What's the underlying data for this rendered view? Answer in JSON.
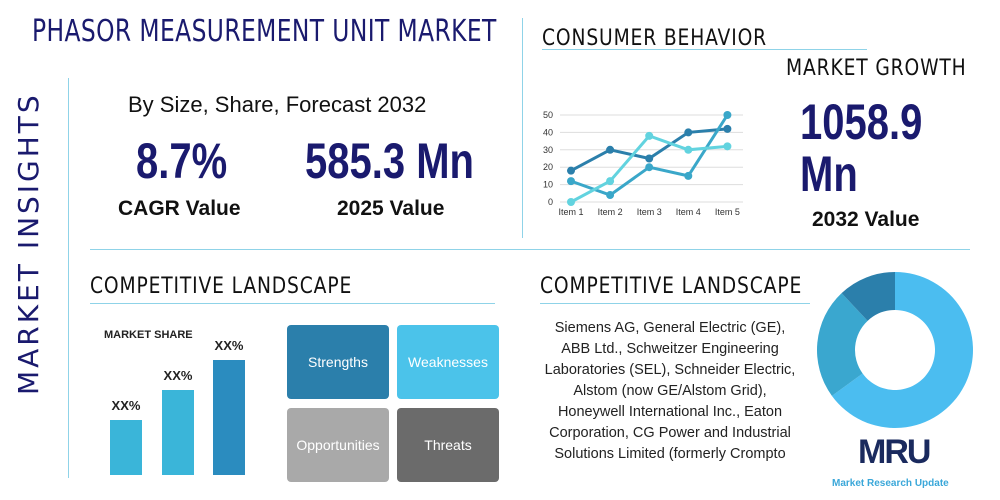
{
  "header": {
    "title": "PHASOR MEASUREMENT UNIT MARKET",
    "vertical": "MARKET INSIGHTS",
    "subtitle": "By Size, Share, Forecast 2032"
  },
  "stats": {
    "cagr_value": "8.7%",
    "cagr_label": "CAGR Value",
    "y2025_value": "585.3 Mn",
    "y2025_label": "2025 Value",
    "y2032_value": "1058.9 Mn",
    "y2032_label": "2032 Value"
  },
  "sections": {
    "consumer": "CONSUMER BEHAVIOR",
    "growth": "MARKET GROWTH",
    "competitive_left": "COMPETITIVE LANDSCAPE",
    "competitive_right": "COMPETITIVE LANDSCAPE"
  },
  "swot": {
    "strengths": "Strengths",
    "weaknesses": "Weaknesses",
    "opportunities": "Opportunities",
    "threats": "Threats"
  },
  "companies": "Siemens AG, General Electric (GE), ABB Ltd., Schweitzer Engineering Laboratories (SEL), Schneider Electric, Alstom (now GE/Alstom Grid), Honeywell International Inc., Eaton Corporation, CG Power and Industrial Solutions Limited (formerly Crompto",
  "logo": {
    "text": "MRU",
    "tagline": "Market Research Update"
  },
  "colors": {
    "navy": "#1a1a6e",
    "dark": "#2b7fab",
    "medium": "#3aa7c9",
    "light": "#62d3df",
    "donut_light": "#4bbdf0"
  },
  "chart_data": [
    {
      "type": "line",
      "categories": [
        "Item 1",
        "Item 2",
        "Item 3",
        "Item 4",
        "Item 5"
      ],
      "ylim": [
        0,
        50
      ],
      "yticks": [
        0,
        10,
        20,
        30,
        40,
        50
      ],
      "grid": true,
      "series": [
        {
          "values": [
            18,
            30,
            25,
            40,
            42
          ],
          "color": "#2b7fab"
        },
        {
          "values": [
            12,
            4,
            20,
            15,
            50
          ],
          "color": "#3aa7c9"
        },
        {
          "values": [
            0,
            12,
            38,
            30,
            32
          ],
          "color": "#62d3df"
        }
      ]
    },
    {
      "type": "bar",
      "title": "MARKET SHARE",
      "categories": [
        "",
        "",
        ""
      ],
      "values": [
        1,
        1.55,
        2.1
      ],
      "labels": [
        "XX%",
        "XX%",
        "XX%"
      ],
      "colors": [
        "#3ab5d9",
        "#3ab5d9",
        "#2b8cbf"
      ]
    },
    {
      "type": "pie",
      "donut": true,
      "values": [
        65,
        23,
        12
      ],
      "colors": [
        "#4bbdf0",
        "#3aa7cf",
        "#2b7fab"
      ]
    }
  ]
}
